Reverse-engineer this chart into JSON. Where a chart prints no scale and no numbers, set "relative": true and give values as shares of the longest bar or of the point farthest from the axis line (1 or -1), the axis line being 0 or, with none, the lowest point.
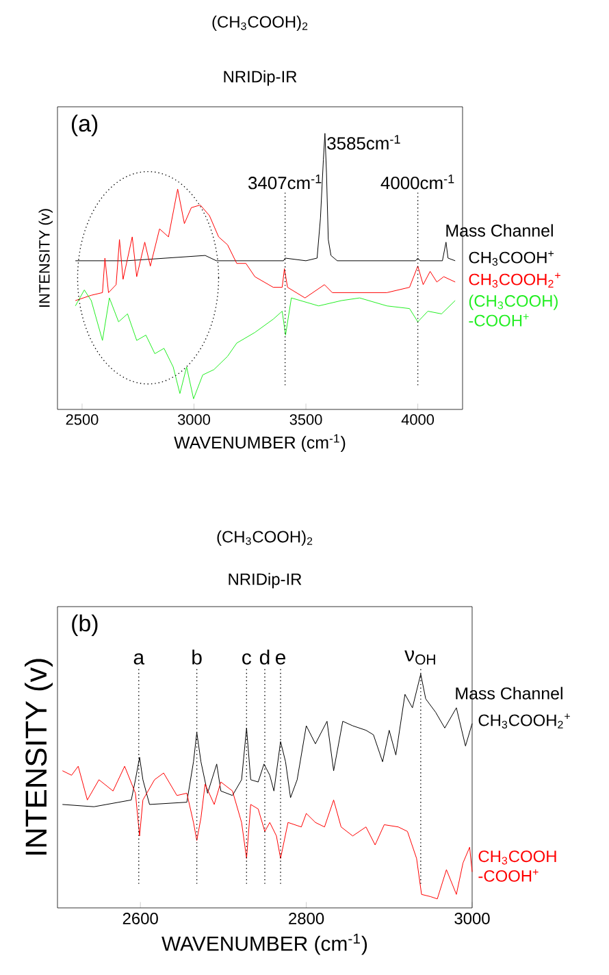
{
  "chart_data": [
    {
      "type": "line",
      "title": "(CH$_{3}$COOH)$_{2}$",
      "subtitle": "NRIDip-IR",
      "xlabel": "WAVENUMBER (cm$^{-1}$)",
      "ylabel": "INTENSITY (v)",
      "legend_title": "Mass Channel",
      "relative": true,
      "xlim": [
        2390,
        4200
      ],
      "xticks": [
        2500,
        3000,
        3500,
        4000
      ],
      "series": [
        {
          "name": "CH$_{3}$COOH$^{+}$",
          "color": "#000000",
          "x": [
            2470,
            2700,
            3050,
            3100,
            3400,
            3407,
            3500,
            3550,
            3565,
            3578,
            3585,
            3592,
            3600,
            3612,
            3640,
            3990,
            4000,
            4010,
            4110,
            4126,
            4135,
            4167
          ],
          "values": [
            0.52,
            0.52,
            0.54,
            0.52,
            0.52,
            0.53,
            0.52,
            0.53,
            0.68,
            0.9,
            1,
            0.85,
            0.6,
            0.54,
            0.52,
            0.52,
            0.53,
            0.52,
            0.52,
            0.59,
            0.53,
            0.52
          ]
        },
        {
          "name": "CH$_{3}$COOH$_{2}$$^{+}$",
          "color": "#ff0000",
          "x": [
            2470,
            2541,
            2591,
            2602,
            2618,
            2652,
            2667,
            2683,
            2724,
            2744,
            2780,
            2805,
            2846,
            2886,
            2927,
            2957,
            2988,
            3028,
            3069,
            3110,
            3150,
            3191,
            3232,
            3272,
            3354,
            3394,
            3404,
            3418,
            3496,
            3583,
            3618,
            3862,
            3963,
            4000,
            4024,
            4055,
            4085,
            4116,
            4167
          ],
          "values": [
            0.37,
            0.39,
            0.4,
            0.53,
            0.4,
            0.43,
            0.6,
            0.45,
            0.61,
            0.46,
            0.59,
            0.5,
            0.64,
            0.61,
            0.79,
            0.66,
            0.72,
            0.73,
            0.69,
            0.61,
            0.58,
            0.51,
            0.51,
            0.46,
            0.42,
            0.42,
            0.49,
            0.42,
            0.38,
            0.43,
            0.4,
            0.4,
            0.42,
            0.5,
            0.43,
            0.48,
            0.44,
            0.46,
            0.44
          ]
        },
        {
          "name": "(CH$_{3}$COOH) -COOH$^{+}$",
          "color": "#22ee22",
          "x": [
            2470,
            2510,
            2541,
            2591,
            2622,
            2663,
            2703,
            2744,
            2785,
            2825,
            2866,
            2907,
            2937,
            2967,
            2998,
            3039,
            3089,
            3150,
            3191,
            3272,
            3354,
            3394,
            3409,
            3435,
            3557,
            3659,
            3740,
            3862,
            3963,
            4000,
            4045,
            4106,
            4167
          ],
          "values": [
            0.35,
            0.41,
            0.37,
            0.22,
            0.38,
            0.29,
            0.32,
            0.22,
            0.24,
            0.17,
            0.19,
            0.12,
            0.02,
            0.12,
            0,
            0.09,
            0.11,
            0.16,
            0.21,
            0.25,
            0.3,
            0.33,
            0.24,
            0.38,
            0.35,
            0.37,
            0.38,
            0.35,
            0.34,
            0.29,
            0.33,
            0.32,
            0.37
          ]
        }
      ],
      "ref_lines": [
        {
          "axis": "x",
          "value": 3407,
          "label": "3407cm$^{-1}$",
          "line_style": "dotted"
        },
        {
          "axis": "x",
          "value": 4000,
          "label": "4000cm$^{-1}$",
          "line_style": "dotted"
        }
      ],
      "annotations": [
        "(a)",
        {
          "text": "3585cm$^{-1}$",
          "x": 3585,
          "y": 1
        }
      ]
    },
    {
      "type": "line",
      "title": "(CH$_{3}$COOH)$_{2}$",
      "subtitle": "NRIDip-IR",
      "xlabel": "WAVENUMBER (cm$^{-1}$)",
      "ylabel": "INTENSITY (v)",
      "legend_title": "Mass Channel",
      "relative": true,
      "xlim": [
        2500,
        3000
      ],
      "xticks": [
        2600,
        2800,
        3000
      ],
      "series": [
        {
          "name": "CH$_{3}$COOH$_{2}$$^{+}$",
          "color": "#000000",
          "x": [
            2506,
            2544,
            2589,
            2594,
            2599,
            2603,
            2611,
            2656,
            2664,
            2668,
            2673,
            2681,
            2692,
            2697,
            2711,
            2722,
            2728,
            2733,
            2742,
            2749,
            2756,
            2761,
            2769,
            2775,
            2781,
            2789,
            2800,
            2811,
            2825,
            2833,
            2844,
            2856,
            2872,
            2881,
            2892,
            2900,
            2908,
            2919,
            2928,
            2938,
            2944,
            2956,
            2967,
            2981,
            2992,
            3000
          ],
          "values": [
            0.42,
            0.41,
            0.44,
            0.53,
            0.63,
            0.53,
            0.42,
            0.43,
            0.61,
            0.74,
            0.61,
            0.47,
            0.6,
            0.48,
            0.46,
            0.53,
            0.76,
            0.53,
            0.52,
            0.6,
            0.55,
            0.48,
            0.7,
            0.61,
            0.45,
            0.53,
            0.77,
            0.69,
            0.79,
            0.57,
            0.79,
            0.77,
            0.75,
            0.73,
            0.61,
            0.75,
            0.64,
            0.91,
            0.85,
            1,
            0.89,
            0.83,
            0.76,
            0.85,
            0.68,
            0.78
          ]
        },
        {
          "name": "CH$_{3}$COOH -COOH$^{+}$",
          "color": "#ff0000",
          "x": [
            2506,
            2517,
            2525,
            2536,
            2550,
            2567,
            2581,
            2594,
            2599,
            2603,
            2617,
            2628,
            2644,
            2656,
            2664,
            2668,
            2673,
            2678,
            2689,
            2697,
            2711,
            2722,
            2728,
            2733,
            2742,
            2750,
            2756,
            2764,
            2769,
            2778,
            2794,
            2800,
            2811,
            2822,
            2833,
            2842,
            2856,
            2872,
            2883,
            2894,
            2911,
            2922,
            2933,
            2939,
            2950,
            2958,
            2969,
            2981,
            2989,
            2997,
            3000
          ],
          "values": [
            0.57,
            0.55,
            0.59,
            0.44,
            0.53,
            0.48,
            0.59,
            0.47,
            0.28,
            0.44,
            0.53,
            0.56,
            0.46,
            0.47,
            0.34,
            0.26,
            0.36,
            0.51,
            0.42,
            0.52,
            0.48,
            0.34,
            0.18,
            0.42,
            0.4,
            0.3,
            0.34,
            0.28,
            0.18,
            0.34,
            0.32,
            0.38,
            0.34,
            0.32,
            0.44,
            0.32,
            0.28,
            0.32,
            0.24,
            0.33,
            0.32,
            0.3,
            0.18,
            0.02,
            0.01,
            0,
            0.13,
            0.02,
            0.16,
            0.23,
            0.12
          ]
        }
      ],
      "ref_lines": [
        {
          "axis": "x",
          "value": 2598,
          "label": "a",
          "line_style": "dotted"
        },
        {
          "axis": "x",
          "value": 2668,
          "label": "b",
          "line_style": "dotted"
        },
        {
          "axis": "x",
          "value": 2728,
          "label": "c",
          "line_style": "dotted"
        },
        {
          "axis": "x",
          "value": 2750,
          "label": "d",
          "line_style": "dotted"
        },
        {
          "axis": "x",
          "value": 2769,
          "label": "e",
          "line_style": "dotted"
        },
        {
          "axis": "x",
          "value": 2938,
          "label": "ν$_{OH}$",
          "line_style": "dotted"
        }
      ],
      "annotations": [
        "(b)"
      ]
    }
  ]
}
